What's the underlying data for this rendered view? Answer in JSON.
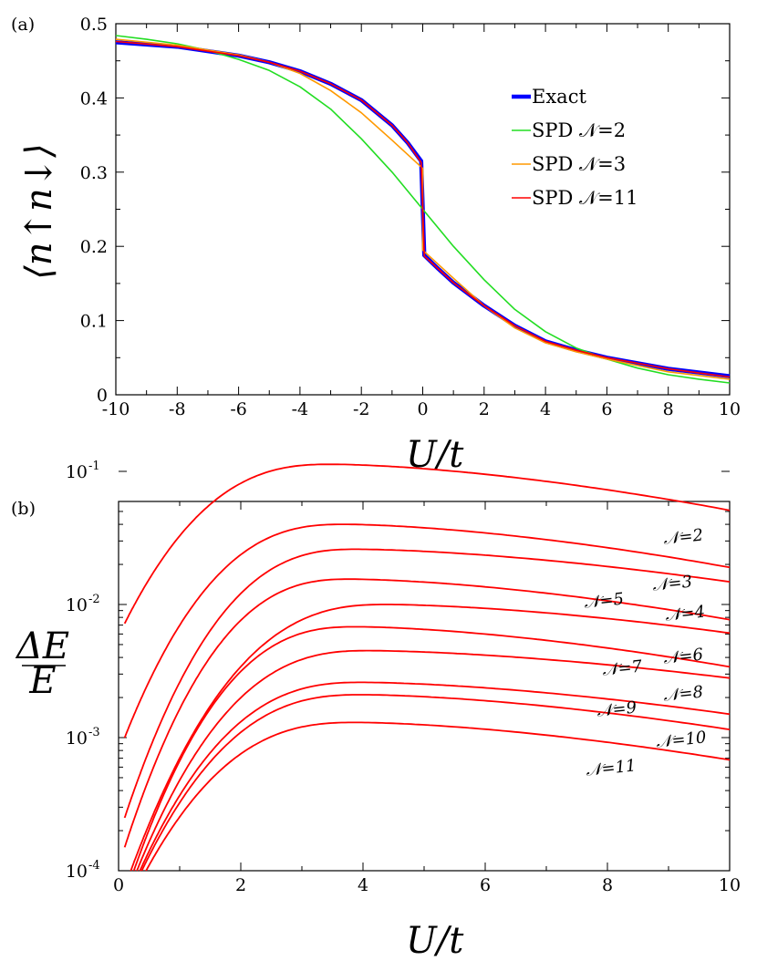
{
  "chart_data": [
    {
      "type": "line",
      "panel_label": "(a)",
      "xlabel": "U/t",
      "ylabel": "⟨n↑n↓⟩",
      "xlim": [
        -10,
        10
      ],
      "ylim": [
        0,
        0.5
      ],
      "x_ticks": [
        "-10",
        "-8",
        "-6",
        "-4",
        "-2",
        "0",
        "2",
        "4",
        "6",
        "8",
        "10"
      ],
      "y_ticks": [
        "0",
        "0.1",
        "0.2",
        "0.3",
        "0.4",
        "0.5"
      ],
      "legend_position": "right",
      "legend": [
        "Exact",
        "SPD 𝒩=2",
        "SPD 𝒩=3",
        "SPD 𝒩=11"
      ],
      "series": [
        {
          "name": "Exact",
          "color": "#0000ff",
          "points": [
            [
              -10,
              0.475
            ],
            [
              -8,
              0.469
            ],
            [
              -6,
              0.457
            ],
            [
              -5,
              0.448
            ],
            [
              -4,
              0.436
            ],
            [
              -3,
              0.419
            ],
            [
              -2,
              0.397
            ],
            [
              -1,
              0.363
            ],
            [
              -0.5,
              0.34
            ],
            [
              -0.05,
              0.315
            ],
            [
              0.05,
              0.188
            ],
            [
              0.5,
              0.17
            ],
            [
              1,
              0.151
            ],
            [
              2,
              0.12
            ],
            [
              3,
              0.093
            ],
            [
              4,
              0.072
            ],
            [
              5,
              0.06
            ],
            [
              6,
              0.05
            ],
            [
              8,
              0.035
            ],
            [
              10,
              0.025
            ]
          ]
        },
        {
          "name": "SPD 𝒩=2",
          "color": "#22dd22",
          "points": [
            [
              -10,
              0.484
            ],
            [
              -9,
              0.479
            ],
            [
              -8,
              0.473
            ],
            [
              -7,
              0.464
            ],
            [
              -6,
              0.452
            ],
            [
              -5,
              0.437
            ],
            [
              -4,
              0.415
            ],
            [
              -3,
              0.385
            ],
            [
              -2,
              0.345
            ],
            [
              -1,
              0.3
            ],
            [
              0,
              0.25
            ],
            [
              1,
              0.2
            ],
            [
              2,
              0.155
            ],
            [
              3,
              0.115
            ],
            [
              4,
              0.085
            ],
            [
              5,
              0.063
            ],
            [
              6,
              0.048
            ],
            [
              7,
              0.036
            ],
            [
              8,
              0.027
            ],
            [
              9,
              0.021
            ],
            [
              10,
              0.016
            ]
          ]
        },
        {
          "name": "SPD 𝒩=3",
          "color": "#ff9900",
          "points": [
            [
              -10,
              0.479
            ],
            [
              -8,
              0.471
            ],
            [
              -6,
              0.458
            ],
            [
              -5,
              0.448
            ],
            [
              -4,
              0.433
            ],
            [
              -3,
              0.41
            ],
            [
              -2,
              0.38
            ],
            [
              -1,
              0.343
            ],
            [
              0,
              0.305
            ],
            [
              0,
              0.195
            ],
            [
              1,
              0.157
            ],
            [
              2,
              0.12
            ],
            [
              3,
              0.09
            ],
            [
              4,
              0.07
            ],
            [
              5,
              0.058
            ],
            [
              6,
              0.048
            ],
            [
              8,
              0.031
            ],
            [
              10,
              0.021
            ]
          ]
        },
        {
          "name": "SPD 𝒩=11",
          "color": "#ff0000",
          "points": [
            [
              -10,
              0.476
            ],
            [
              -8,
              0.469
            ],
            [
              -6,
              0.457
            ],
            [
              -5,
              0.448
            ],
            [
              -4,
              0.436
            ],
            [
              -3,
              0.419
            ],
            [
              -2,
              0.397
            ],
            [
              -1,
              0.363
            ],
            [
              -0.5,
              0.34
            ],
            [
              -0.05,
              0.313
            ],
            [
              0.05,
              0.187
            ],
            [
              0.5,
              0.17
            ],
            [
              1,
              0.151
            ],
            [
              2,
              0.12
            ],
            [
              3,
              0.093
            ],
            [
              4,
              0.072
            ],
            [
              5,
              0.06
            ],
            [
              6,
              0.05
            ],
            [
              8,
              0.035
            ],
            [
              10,
              0.024
            ]
          ]
        }
      ]
    },
    {
      "type": "line",
      "panel_label": "(b)",
      "xlabel": "U/t",
      "ylabel": "ΔE / E",
      "xlim": [
        0,
        10
      ],
      "ylim": [
        0.0001,
        0.15
      ],
      "yscale": "log",
      "x_ticks": [
        "0",
        "2",
        "4",
        "6",
        "8",
        "10"
      ],
      "y_ticks": [
        {
          "value": 0.0001,
          "base": "10",
          "exp": "-4"
        },
        {
          "value": 0.001,
          "base": "10",
          "exp": "-3"
        },
        {
          "value": 0.01,
          "base": "10",
          "exp": "-2"
        },
        {
          "value": 0.1,
          "base": "10",
          "exp": "-1"
        }
      ],
      "series_color": "#ff0000",
      "series": [
        {
          "name": "𝒩=2",
          "label": "𝒩=2",
          "x0": 0.1,
          "y0": 0.0072,
          "peak_x": 3.5,
          "peak_y": 0.113,
          "y_end": 0.051
        },
        {
          "name": "𝒩=3",
          "label": "𝒩=3",
          "x0": 0.1,
          "y0": 0.001,
          "peak_x": 3.7,
          "peak_y": 0.04,
          "y_end": 0.019
        },
        {
          "name": "𝒩=4",
          "label": "𝒩=4",
          "x0": 0.1,
          "y0": 0.00025,
          "peak_x": 3.9,
          "peak_y": 0.026,
          "y_end": 0.0148
        },
        {
          "name": "𝒩=5",
          "label": "𝒩=5",
          "x0": 0.1,
          "y0": 0.00015,
          "peak_x": 3.8,
          "peak_y": 0.0155,
          "y_end": 0.0077
        },
        {
          "name": "𝒩=6",
          "label": "𝒩=6",
          "x0": 0.2,
          "y0": 0.0001,
          "peak_x": 4.4,
          "peak_y": 0.01,
          "y_end": 0.0061
        },
        {
          "name": "𝒩=7",
          "label": "𝒩=7",
          "x0": 0.25,
          "y0": 0.0001,
          "peak_x": 3.9,
          "peak_y": 0.0068,
          "y_end": 0.0034
        },
        {
          "name": "𝒩=8",
          "label": "𝒩=8",
          "x0": 0.3,
          "y0": 0.0001,
          "peak_x": 4.1,
          "peak_y": 0.0045,
          "y_end": 0.0028
        },
        {
          "name": "𝒩=9",
          "label": "𝒩=9",
          "x0": 0.35,
          "y0": 0.0001,
          "peak_x": 4.0,
          "peak_y": 0.0026,
          "y_end": 0.0015
        },
        {
          "name": "𝒩=10",
          "label": "𝒩=10",
          "x0": 0.38,
          "y0": 0.0001,
          "peak_x": 4.0,
          "peak_y": 0.0021,
          "y_end": 0.00115
        },
        {
          "name": "𝒩=11",
          "label": "𝒩=11",
          "x0": 0.45,
          "y0": 0.0001,
          "peak_x": 3.9,
          "peak_y": 0.0013,
          "y_end": 0.00068
        }
      ]
    }
  ]
}
